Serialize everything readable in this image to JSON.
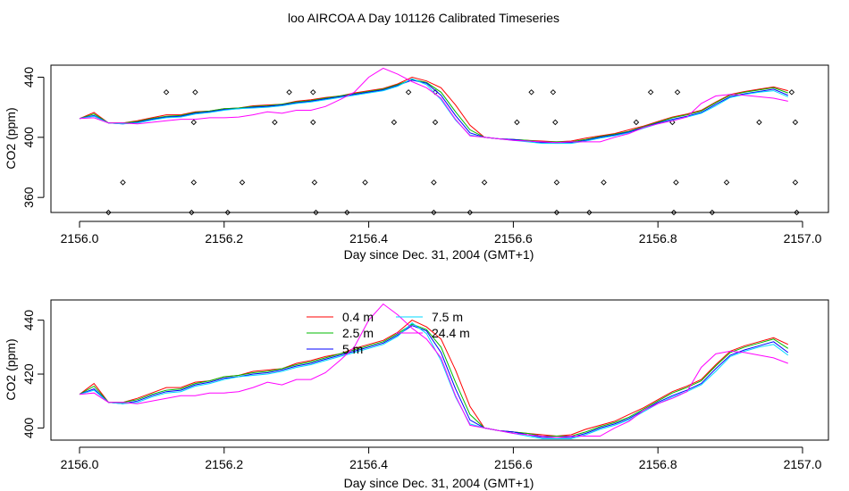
{
  "title": "loo AIRCOA A  Day 101126  Calibrated Timeseries",
  "colors": {
    "0.4 m": "#ff0000",
    "2.5 m": "#00bb00",
    "5 m": "#0000ff",
    "7.5 m": "#00d8ff",
    "24.4 m": "#ff00ff"
  },
  "chart_data": [
    {
      "type": "line",
      "title": "",
      "xlabel": "Day since Dec. 31, 2004 (GMT+1)",
      "ylabel": "CO2 (ppm)",
      "xlim": [
        2156.0,
        2157.0
      ],
      "ylim": [
        350,
        448
      ],
      "xticks": [
        "2156.0",
        "2156.2",
        "2156.4",
        "2156.6",
        "2156.8",
        "2157.0"
      ],
      "yticks": [
        "360",
        "400",
        "440"
      ],
      "grid": false,
      "legend": "none",
      "series": [
        {
          "name": "0.4 m",
          "x": [
            2156.0,
            2156.02,
            2156.04,
            2156.06,
            2156.08,
            2156.1,
            2156.12,
            2156.14,
            2156.16,
            2156.18,
            2156.2,
            2156.22,
            2156.24,
            2156.26,
            2156.28,
            2156.3,
            2156.32,
            2156.34,
            2156.36,
            2156.38,
            2156.4,
            2156.42,
            2156.44,
            2156.46,
            2156.48,
            2156.5,
            2156.52,
            2156.54,
            2156.56,
            2156.58,
            2156.6,
            2156.62,
            2156.64,
            2156.66,
            2156.68,
            2156.7,
            2156.72,
            2156.74,
            2156.76,
            2156.78,
            2156.8,
            2156.82,
            2156.84,
            2156.86,
            2156.88,
            2156.9,
            2156.92,
            2156.94,
            2156.96,
            2156.98
          ],
          "values": [
            412.5,
            416.5,
            409.5,
            409.5,
            411,
            413,
            415,
            415,
            417,
            417.5,
            419,
            419.5,
            421,
            421.5,
            422,
            424,
            425,
            426.5,
            427.5,
            429.5,
            431,
            432.5,
            435.5,
            440,
            437.5,
            433,
            421.5,
            408,
            400,
            399,
            398.5,
            398,
            397.5,
            397,
            397.5,
            399.5,
            401,
            402.5,
            405,
            407.5,
            410.5,
            413.5,
            415.5,
            418,
            423.5,
            428.5,
            430.5,
            432,
            433.5,
            431
          ]
        },
        {
          "name": "2.5 m",
          "x": [
            2156.0,
            2156.02,
            2156.04,
            2156.06,
            2156.08,
            2156.1,
            2156.12,
            2156.14,
            2156.16,
            2156.18,
            2156.2,
            2156.22,
            2156.24,
            2156.26,
            2156.28,
            2156.3,
            2156.32,
            2156.34,
            2156.36,
            2156.38,
            2156.4,
            2156.42,
            2156.44,
            2156.46,
            2156.48,
            2156.5,
            2156.52,
            2156.54,
            2156.56,
            2156.58,
            2156.6,
            2156.62,
            2156.64,
            2156.66,
            2156.68,
            2156.7,
            2156.72,
            2156.74,
            2156.76,
            2156.78,
            2156.8,
            2156.82,
            2156.84,
            2156.86,
            2156.88,
            2156.9,
            2156.92,
            2156.94,
            2156.96,
            2156.98
          ],
          "values": [
            412.5,
            415.5,
            409.5,
            409.5,
            410.5,
            412.5,
            414,
            414.5,
            416.5,
            417.5,
            419,
            419.5,
            420.5,
            421,
            422,
            423.5,
            424.5,
            426,
            427.5,
            429,
            430.5,
            432,
            435,
            438.5,
            436.5,
            430,
            417,
            405,
            400,
            399,
            398.5,
            398,
            397,
            397,
            397,
            398.5,
            400.5,
            402,
            404,
            407,
            410,
            413,
            415,
            417.5,
            423,
            428,
            430,
            431.5,
            433,
            429.5
          ]
        },
        {
          "name": "5 m",
          "x": [
            2156.0,
            2156.02,
            2156.04,
            2156.06,
            2156.08,
            2156.1,
            2156.12,
            2156.14,
            2156.16,
            2156.18,
            2156.2,
            2156.22,
            2156.24,
            2156.26,
            2156.28,
            2156.3,
            2156.32,
            2156.34,
            2156.36,
            2156.38,
            2156.4,
            2156.42,
            2156.44,
            2156.46,
            2156.48,
            2156.5,
            2156.52,
            2156.54,
            2156.56,
            2156.58,
            2156.6,
            2156.62,
            2156.64,
            2156.66,
            2156.68,
            2156.7,
            2156.72,
            2156.74,
            2156.76,
            2156.78,
            2156.8,
            2156.82,
            2156.84,
            2156.86,
            2156.88,
            2156.9,
            2156.92,
            2156.94,
            2156.96,
            2156.98
          ],
          "values": [
            412.5,
            414.5,
            409.5,
            409,
            410,
            412,
            413.5,
            414,
            416,
            417,
            418.5,
            419,
            420,
            420.5,
            421.5,
            423,
            424,
            425.5,
            427,
            428.5,
            430,
            431.5,
            434.5,
            438,
            436,
            428,
            414.5,
            403,
            400,
            399,
            398.5,
            397.5,
            396.5,
            396.5,
            396.5,
            398,
            400,
            401.5,
            403.5,
            406.5,
            409.5,
            412,
            414,
            416.5,
            422,
            427,
            429,
            430.5,
            432,
            428
          ]
        },
        {
          "name": "7.5 m",
          "x": [
            2156.0,
            2156.02,
            2156.04,
            2156.06,
            2156.08,
            2156.1,
            2156.12,
            2156.14,
            2156.16,
            2156.18,
            2156.2,
            2156.22,
            2156.24,
            2156.26,
            2156.28,
            2156.3,
            2156.32,
            2156.34,
            2156.36,
            2156.38,
            2156.4,
            2156.42,
            2156.44,
            2156.46,
            2156.48,
            2156.5,
            2156.52,
            2156.54,
            2156.56,
            2156.58,
            2156.6,
            2156.62,
            2156.64,
            2156.66,
            2156.68,
            2156.7,
            2156.72,
            2156.74,
            2156.76,
            2156.78,
            2156.8,
            2156.82,
            2156.84,
            2156.86,
            2156.88,
            2156.9,
            2156.92,
            2156.94,
            2156.96,
            2156.98
          ],
          "values": [
            412.5,
            414,
            409.5,
            409,
            409.5,
            411.5,
            413,
            413.5,
            415.5,
            416.5,
            418,
            419,
            419.5,
            420,
            421,
            422.5,
            423.5,
            425,
            426.5,
            428,
            429.5,
            431,
            434,
            439,
            435,
            425,
            411.5,
            401.5,
            400,
            399,
            398,
            397,
            396,
            396,
            396,
            397.5,
            399.5,
            401,
            403,
            406,
            409,
            411.5,
            413.5,
            416,
            421,
            426.5,
            428.5,
            430,
            431,
            427
          ]
        },
        {
          "name": "24.4 m",
          "x": [
            2156.0,
            2156.02,
            2156.04,
            2156.06,
            2156.08,
            2156.1,
            2156.12,
            2156.14,
            2156.16,
            2156.18,
            2156.2,
            2156.22,
            2156.24,
            2156.26,
            2156.28,
            2156.3,
            2156.32,
            2156.34,
            2156.36,
            2156.38,
            2156.4,
            2156.42,
            2156.44,
            2156.46,
            2156.48,
            2156.5,
            2156.52,
            2156.54,
            2156.56,
            2156.58,
            2156.6,
            2156.62,
            2156.64,
            2156.66,
            2156.68,
            2156.7,
            2156.72,
            2156.74,
            2156.76,
            2156.78,
            2156.8,
            2156.82,
            2156.84,
            2156.86,
            2156.88,
            2156.9,
            2156.92,
            2156.94,
            2156.96,
            2156.98
          ],
          "values": [
            412.5,
            413,
            409.5,
            409.5,
            409,
            410,
            411,
            412,
            412,
            413,
            413,
            413.5,
            415,
            417,
            416,
            418,
            418,
            420.5,
            425,
            430,
            440,
            446,
            442,
            437,
            433,
            426,
            412,
            401,
            400,
            399,
            398,
            397.5,
            397,
            396.5,
            397,
            397,
            397,
            400,
            402.5,
            406.5,
            409,
            411,
            413.5,
            422.5,
            427.5,
            428.5,
            428,
            427,
            426,
            424
          ]
        }
      ]
    },
    {
      "type": "scatter",
      "title": "",
      "xlim": [
        2156.0,
        2157.0
      ],
      "ylim": [
        350,
        448
      ],
      "series": [
        {
          "x": [
            2156.04,
            2156.06,
            2156.12,
            2156.155,
            2156.158,
            2156.158,
            2156.16,
            2156.205,
            2156.225,
            2156.27,
            2156.29,
            2156.323,
            2156.323,
            2156.325,
            2156.327,
            2156.37,
            2156.395,
            2156.435,
            2156.455,
            2156.49,
            2156.49,
            2156.492,
            2156.492,
            2156.54,
            2156.56,
            2156.605,
            2156.625,
            2156.655,
            2156.658,
            2156.66,
            2156.66,
            2156.705,
            2156.725,
            2156.77,
            2156.79,
            2156.82,
            2156.822,
            2156.825,
            2156.827,
            2156.875,
            2156.895,
            2156.94,
            2156.985,
            2156.99,
            2156.99,
            2156.992
          ],
          "values": [
            350,
            370,
            430,
            350,
            370,
            410,
            430,
            350,
            370,
            410,
            430,
            430,
            410,
            370,
            350,
            350,
            370,
            410,
            430,
            350,
            370,
            410,
            430,
            350,
            370,
            410,
            430,
            430,
            410,
            370,
            350,
            350,
            370,
            410,
            430,
            410,
            350,
            370,
            430,
            350,
            370,
            410,
            430,
            410,
            370,
            350
          ]
        }
      ]
    },
    {
      "type": "line",
      "title": "",
      "xlabel": "Day since Dec. 31, 2004 (GMT+1)",
      "ylabel": "CO2 (ppm)",
      "xlim": [
        2156.0,
        2157.0
      ],
      "ylim": [
        395.5,
        447.5
      ],
      "xticks": [
        "2156.0",
        "2156.2",
        "2156.4",
        "2156.6",
        "2156.8",
        "2157.0"
      ],
      "yticks": [
        "400",
        "420",
        "440"
      ],
      "grid": false,
      "legend": "top-left",
      "legend_layout": [
        [
          "0.4 m",
          "7.5 m"
        ],
        [
          "2.5 m",
          "24.4 m"
        ],
        [
          "5 m",
          ""
        ]
      ]
    }
  ]
}
